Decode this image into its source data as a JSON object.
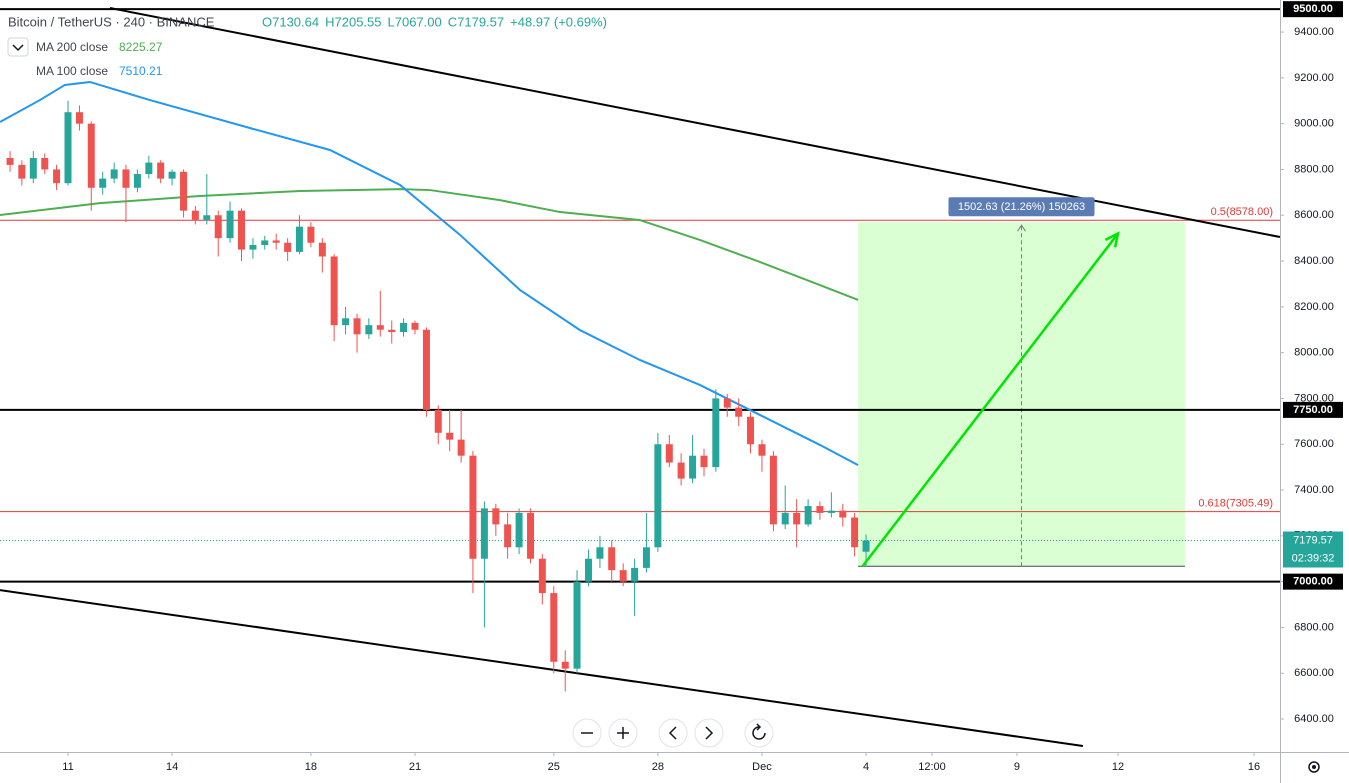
{
  "chart_data": {
    "type": "candlestick",
    "header": {
      "symbol": "Bitcoin / TetherUS · 240 · BINANCE",
      "ohlc": [
        "O7130.64",
        "H7205.55",
        "L7067.00",
        "C7179.57",
        "+48.97 (+0.69%)"
      ]
    },
    "x": [
      -1.67,
      -1.33,
      -1,
      -0.67,
      -0.33,
      0,
      0.33,
      0.67,
      1,
      1.33,
      1.67,
      2,
      2.33,
      2.67,
      3,
      3.33,
      3.67,
      4,
      4.33,
      4.67,
      5,
      5.33,
      5.67,
      6,
      6.33,
      6.67,
      7,
      7.33,
      7.67,
      8,
      8.33,
      8.67,
      9,
      9.33,
      9.67,
      10,
      10.33,
      10.67,
      11,
      11.33,
      11.67,
      12,
      12.33,
      12.67,
      13,
      13.33,
      13.67,
      14,
      14.33,
      14.67,
      15,
      15.33,
      15.67,
      16,
      16.33,
      16.67,
      17,
      17.33,
      17.67,
      18,
      18.33,
      18.67,
      19,
      19.33,
      19.67,
      20,
      20.33,
      20.67,
      21,
      21.33,
      21.67,
      22,
      22.33,
      22.67,
      23
    ],
    "ohlc": [
      [
        8850,
        8880,
        8790,
        8820
      ],
      [
        8820,
        8840,
        8730,
        8760
      ],
      [
        8760,
        8880,
        8740,
        8850
      ],
      [
        8850,
        8870,
        8780,
        8800
      ],
      [
        8800,
        8820,
        8710,
        8740
      ],
      [
        8740,
        9100,
        8730,
        9050
      ],
      [
        9050,
        9080,
        8970,
        9000
      ],
      [
        9000,
        9010,
        8620,
        8720
      ],
      [
        8720,
        8790,
        8690,
        8760
      ],
      [
        8760,
        8830,
        8740,
        8800
      ],
      [
        8800,
        8820,
        8570,
        8720
      ],
      [
        8720,
        8800,
        8700,
        8780
      ],
      [
        8780,
        8860,
        8760,
        8830
      ],
      [
        8830,
        8840,
        8740,
        8760
      ],
      [
        8760,
        8800,
        8730,
        8790
      ],
      [
        8790,
        8800,
        8590,
        8620
      ],
      [
        8620,
        8640,
        8560,
        8580
      ],
      [
        8580,
        8780,
        8560,
        8600
      ],
      [
        8600,
        8620,
        8420,
        8500
      ],
      [
        8500,
        8660,
        8480,
        8620
      ],
      [
        8620,
        8630,
        8400,
        8450
      ],
      [
        8450,
        8500,
        8410,
        8470
      ],
      [
        8470,
        8510,
        8450,
        8490
      ],
      [
        8490,
        8520,
        8450,
        8480
      ],
      [
        8480,
        8500,
        8400,
        8440
      ],
      [
        8440,
        8600,
        8430,
        8550
      ],
      [
        8550,
        8570,
        8460,
        8480
      ],
      [
        8480,
        8500,
        8350,
        8420
      ],
      [
        8420,
        8430,
        8050,
        8120
      ],
      [
        8120,
        8200,
        8080,
        8150
      ],
      [
        8150,
        8170,
        8000,
        8080
      ],
      [
        8080,
        8150,
        8060,
        8120
      ],
      [
        8120,
        8270,
        8070,
        8100
      ],
      [
        8100,
        8140,
        8040,
        8090
      ],
      [
        8090,
        8150,
        8070,
        8130
      ],
      [
        8130,
        8140,
        8080,
        8100
      ],
      [
        8100,
        8110,
        7720,
        7750
      ],
      [
        7750,
        7770,
        7600,
        7650
      ],
      [
        7650,
        7750,
        7570,
        7620
      ],
      [
        7620,
        7750,
        7520,
        7550
      ],
      [
        7550,
        7570,
        6950,
        7100
      ],
      [
        7100,
        7350,
        6800,
        7320
      ],
      [
        7320,
        7340,
        7200,
        7250
      ],
      [
        7250,
        7300,
        7100,
        7150
      ],
      [
        7150,
        7320,
        7120,
        7300
      ],
      [
        7300,
        7320,
        7080,
        7100
      ],
      [
        7100,
        7120,
        6900,
        6950
      ],
      [
        6950,
        6980,
        6600,
        6650
      ],
      [
        6650,
        6700,
        6520,
        6620
      ],
      [
        6620,
        7050,
        6600,
        7000
      ],
      [
        7000,
        7140,
        6980,
        7100
      ],
      [
        7100,
        7200,
        7060,
        7150
      ],
      [
        7150,
        7180,
        7000,
        7050
      ],
      [
        7050,
        7080,
        6980,
        7000
      ],
      [
        7000,
        7100,
        6850,
        7060
      ],
      [
        7060,
        7300,
        7040,
        7150
      ],
      [
        7150,
        7650,
        7130,
        7600
      ],
      [
        7600,
        7640,
        7500,
        7520
      ],
      [
        7520,
        7560,
        7420,
        7450
      ],
      [
        7450,
        7640,
        7430,
        7550
      ],
      [
        7550,
        7580,
        7460,
        7500
      ],
      [
        7500,
        7840,
        7480,
        7800
      ],
      [
        7800,
        7820,
        7720,
        7760
      ],
      [
        7760,
        7800,
        7680,
        7720
      ],
      [
        7720,
        7740,
        7560,
        7600
      ],
      [
        7600,
        7620,
        7480,
        7550
      ],
      [
        7550,
        7570,
        7220,
        7250
      ],
      [
        7250,
        7420,
        7230,
        7300
      ],
      [
        7300,
        7360,
        7150,
        7250
      ],
      [
        7250,
        7360,
        7240,
        7330
      ],
      [
        7330,
        7350,
        7270,
        7300
      ],
      [
        7300,
        7390,
        7280,
        7310
      ],
      [
        7310,
        7340,
        7240,
        7280
      ],
      [
        7280,
        7300,
        7110,
        7150
      ],
      [
        7130.64,
        7205.55,
        7067,
        7179.57
      ]
    ],
    "up_color": "#26a69a",
    "down_color": "#ef5350",
    "series": [
      {
        "name": "MA 200 close",
        "legend_value": 8225.27,
        "color": "#4caf50",
        "x": [
          -1.96,
          0.92,
          3.8,
          6.69,
          9.57,
          10.43,
          12.45,
          14.18,
          16.48,
          18.21,
          19.94,
          21.67,
          22.77
        ],
        "values": [
          8601,
          8653,
          8684,
          8706,
          8714,
          8710,
          8666,
          8614,
          8579,
          8492,
          8396,
          8295,
          8230
        ]
      },
      {
        "name": "MA 100 close",
        "legend_value": 7510.21,
        "color": "#2196f3",
        "x": [
          -1.96,
          -0.81,
          -0.09,
          0.63,
          2.36,
          5.24,
          7.55,
          9.57,
          11.3,
          13.03,
          14.76,
          16.48,
          18.21,
          19.94,
          21.67,
          22.77
        ],
        "values": [
          9007,
          9103,
          9169,
          9182,
          9103,
          8981,
          8885,
          8732,
          8514,
          8273,
          8098,
          7968,
          7859,
          7728,
          7597,
          7509
        ]
      }
    ],
    "xlim": [
      -1.96,
      34.93
    ],
    "xticks": [
      {
        "value": 0,
        "label": "11"
      },
      {
        "value": 3,
        "label": "14"
      },
      {
        "value": 7,
        "label": "18"
      },
      {
        "value": 10,
        "label": "21"
      },
      {
        "value": 14,
        "label": "25"
      },
      {
        "value": 17,
        "label": "28"
      },
      {
        "value": 20,
        "label": "Dec"
      },
      {
        "value": 23,
        "label": "4"
      },
      {
        "value": 24.9,
        "label": "12:00"
      },
      {
        "value": 27.35,
        "label": "9"
      },
      {
        "value": 30.26,
        "label": "12"
      },
      {
        "value": 34.18,
        "label": "16"
      }
    ],
    "ylim": [
      6256,
      9540
    ],
    "yticks": [
      {
        "value": 6400,
        "label": "6400.00"
      },
      {
        "value": 6600,
        "label": "6600.00"
      },
      {
        "value": 6800,
        "label": "6800.00"
      },
      {
        "value": 7000,
        "label": "7000.00"
      },
      {
        "value": 7200,
        "label": "7200.00"
      },
      {
        "value": 7400,
        "label": "7400.00"
      },
      {
        "value": 7600,
        "label": "7600.00"
      },
      {
        "value": 7800,
        "label": "7800.00"
      },
      {
        "value": 8000,
        "label": "8000.00"
      },
      {
        "value": 8200,
        "label": "8200.00"
      },
      {
        "value": 8400,
        "label": "8400.00"
      },
      {
        "value": 8600,
        "label": "8600.00"
      },
      {
        "value": 8800,
        "label": "8800.00"
      },
      {
        "value": 9000,
        "label": "9000.00"
      },
      {
        "value": 9200,
        "label": "9200.00"
      },
      {
        "value": 9400,
        "label": "9400.00"
      }
    ],
    "grid": false,
    "levels": [
      {
        "value": 9500,
        "label": "9500.00"
      },
      {
        "value": 7750,
        "label": "7750.00"
      },
      {
        "value": 7000,
        "label": "7000.00"
      }
    ],
    "fib": [
      {
        "value": 8578,
        "label": "0.5(8578.00)"
      },
      {
        "value": 7305.49,
        "label": "0.618(7305.49)"
      }
    ],
    "trend_lines": [
      {
        "x": [
          1.21,
          34.93
        ],
        "y": [
          9505,
          8505
        ]
      },
      {
        "x": [
          -1.96,
          29.25
        ],
        "y": [
          6963,
          6282
        ]
      }
    ],
    "position": {
      "x": [
        22.77,
        32.19
      ],
      "y": [
        7067,
        8569.63
      ],
      "label": "1502.63 (21.26%) 150263"
    },
    "arrow": {
      "x": [
        22.9,
        30.26
      ],
      "y": [
        7067,
        8520
      ]
    },
    "last_price": {
      "value": 7179.57,
      "countdown": "02:39:32"
    }
  }
}
